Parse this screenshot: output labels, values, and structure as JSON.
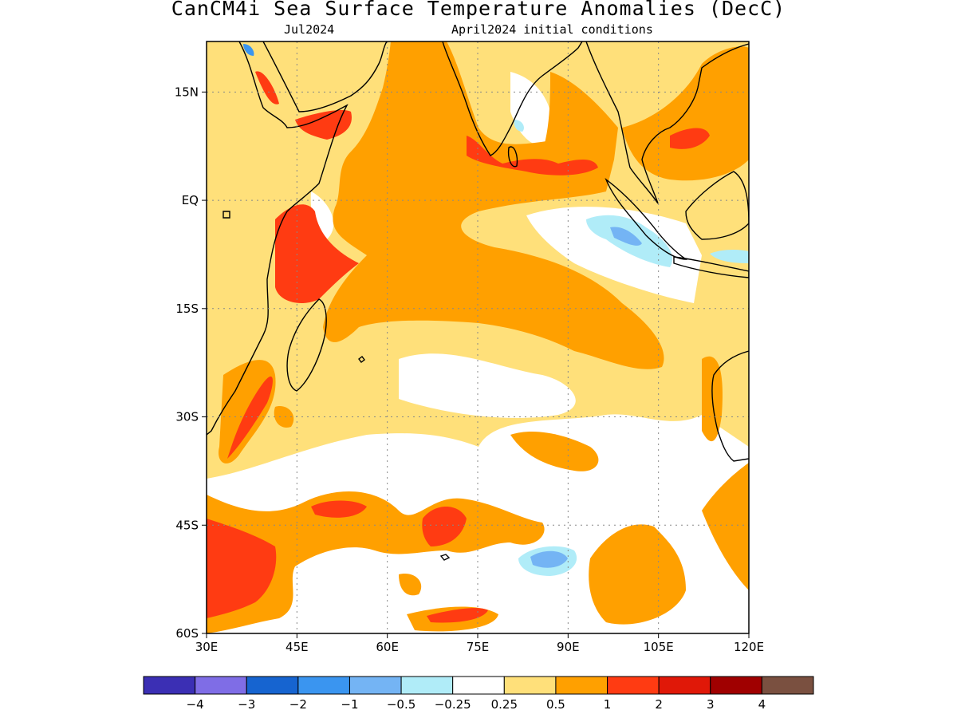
{
  "header": {
    "title": "CanCM4i Sea Surface Temperature Anomalies (DecC)",
    "subtitle_left": "Jul2024",
    "subtitle_right": "April2024 initial conditions"
  },
  "map": {
    "lon_range": [
      30,
      120
    ],
    "lat_range": [
      -60,
      22
    ],
    "lon_ticks": [
      {
        "value": 30,
        "label": "30E"
      },
      {
        "value": 45,
        "label": "45E"
      },
      {
        "value": 60,
        "label": "60E"
      },
      {
        "value": 75,
        "label": "75E"
      },
      {
        "value": 90,
        "label": "90E"
      },
      {
        "value": 105,
        "label": "105E"
      },
      {
        "value": 120,
        "label": "120E"
      }
    ],
    "lat_ticks": [
      {
        "value": 15,
        "label": "15N"
      },
      {
        "value": 0,
        "label": "EQ"
      },
      {
        "value": -15,
        "label": "15S"
      },
      {
        "value": -30,
        "label": "30S"
      },
      {
        "value": -45,
        "label": "45S"
      },
      {
        "value": -60,
        "label": "60S"
      }
    ],
    "grid": true,
    "land_color": "#ffffff",
    "coast_color": "#000000"
  },
  "colorbar": {
    "colors": [
      "#3b2fb4",
      "#7f6de6",
      "#1664d0",
      "#3a95f0",
      "#74b4f4",
      "#b0ecf8",
      "#ffffff",
      "#ffe07a",
      "#ffa000",
      "#ff3b12",
      "#e01808",
      "#a00000",
      "#7a5040"
    ],
    "labels": [
      "−4",
      "−3",
      "−2",
      "−1",
      "−0.5",
      "−0.25",
      "0.25",
      "0.5",
      "1",
      "2",
      "3",
      "4"
    ]
  }
}
